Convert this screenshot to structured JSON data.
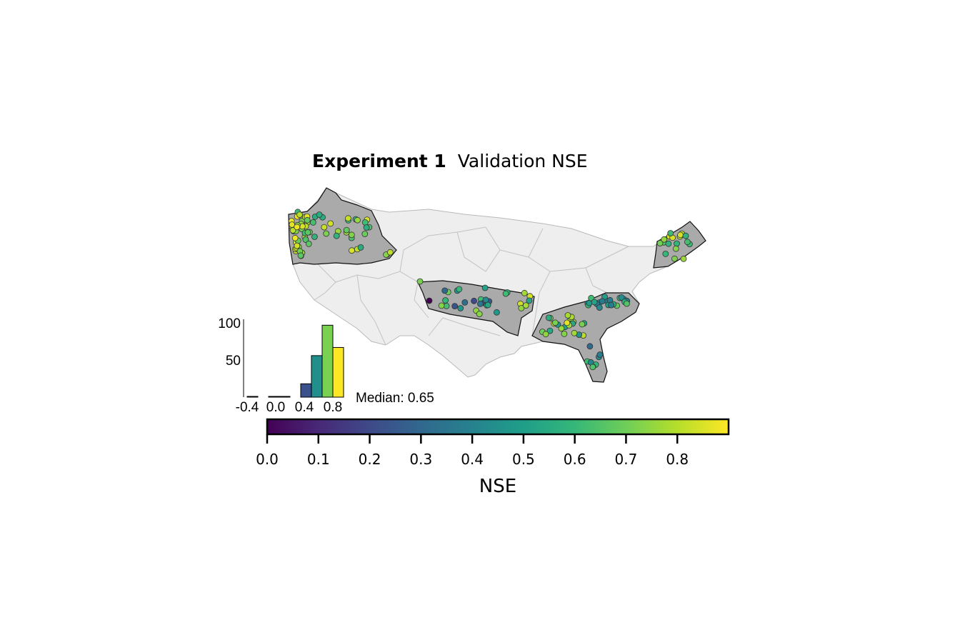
{
  "figure": {
    "title_bold": "Experiment 1",
    "title_rest": "Validation NSE",
    "median_label": "Median: 0.65"
  },
  "chart_data": [
    {
      "type": "map",
      "title": "Experiment 1 Validation NSE",
      "region": "Contiguous United States (major river basins)",
      "highlighted_basins": [
        "Pacific Northwest",
        "Arkansas-White-Red",
        "South Atlantic-Gulf",
        "New England"
      ],
      "background_color": "#eeeeee",
      "highlight_color": "#aaaaaa",
      "colormap": "viridis"
    },
    {
      "type": "bar",
      "title": "",
      "xlabel": "",
      "ylabel": "",
      "x_ticks": [
        "-0.4",
        "0.0",
        "0.4",
        "0.8"
      ],
      "y_ticks": [
        "50",
        "100"
      ],
      "xlim": [
        -0.45,
        1.0
      ],
      "ylim": [
        0,
        105
      ],
      "bins": [
        {
          "from": -0.4,
          "to": -0.25,
          "value": 1,
          "color": "#440154"
        },
        {
          "from": -0.1,
          "to": 0.05,
          "value": 1,
          "color": "#440154"
        },
        {
          "from": 0.05,
          "to": 0.2,
          "value": 1,
          "color": "#471164"
        },
        {
          "from": 0.35,
          "to": 0.5,
          "value": 18,
          "color": "#3b518b"
        },
        {
          "from": 0.5,
          "to": 0.65,
          "value": 56,
          "color": "#21908d"
        },
        {
          "from": 0.65,
          "to": 0.8,
          "value": 97,
          "color": "#7ad151"
        },
        {
          "from": 0.8,
          "to": 0.95,
          "value": 67,
          "color": "#fde725"
        }
      ]
    },
    {
      "type": "colorbar",
      "label": "NSE",
      "range": [
        0.0,
        0.9
      ],
      "ticks": [
        "0.0",
        "0.1",
        "0.2",
        "0.3",
        "0.4",
        "0.5",
        "0.6",
        "0.7",
        "0.8"
      ],
      "colormap_stops": [
        "#440154",
        "#482878",
        "#3e4a89",
        "#31688e",
        "#26828e",
        "#1f9e89",
        "#35b779",
        "#6ece58",
        "#b5de2b",
        "#fde725"
      ]
    }
  ]
}
